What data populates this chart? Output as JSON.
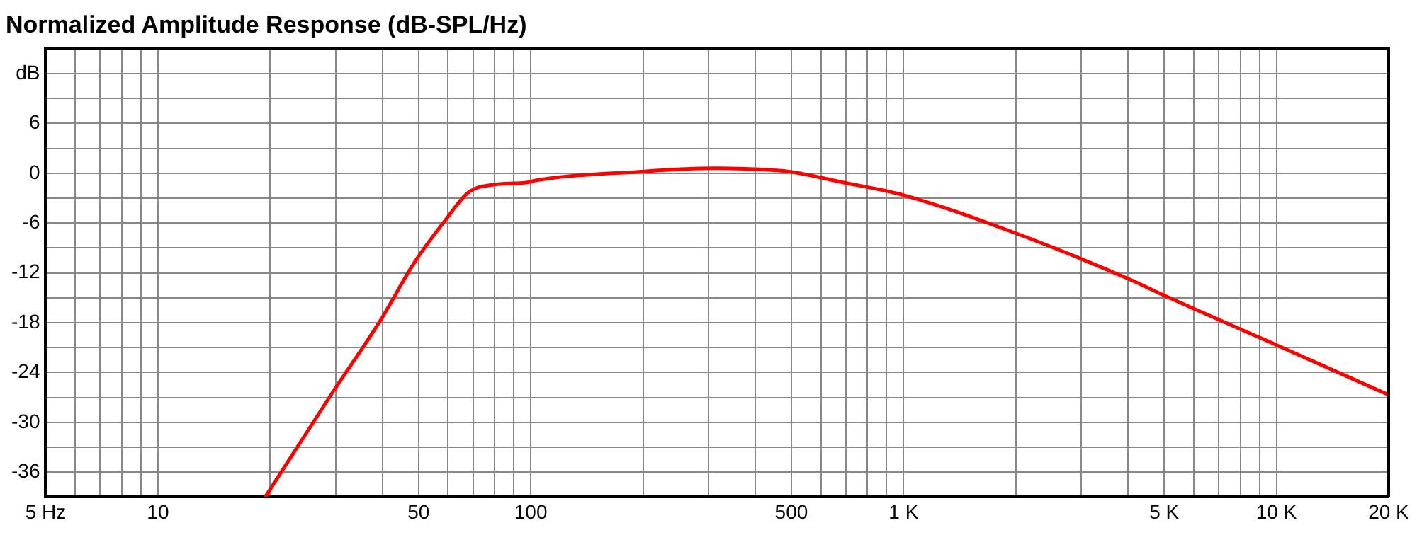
{
  "chart_data": {
    "type": "line",
    "title": "Normalized Amplitude Response (dB-SPL/Hz)",
    "x": [
      19.4,
      29.3,
      39.3,
      49,
      58.9,
      68.1,
      78.9,
      98,
      102,
      198,
      307,
      397,
      494,
      687,
      993,
      1992,
      4000,
      4990,
      10020,
      20000
    ],
    "series": [
      {
        "color": "#ff0000",
        "values": [
          -39,
          -26.5,
          -17.9,
          -10.6,
          -5.7,
          -2.3,
          -1.4,
          -1.1,
          -0.9,
          0.2,
          0.6,
          0.5,
          0.2,
          -1.1,
          -2.6,
          -7.2,
          -12.7,
          -14.7,
          -20.7,
          -26.7
        ]
      }
    ],
    "xlim": [
      5,
      20000
    ],
    "xticks": [
      {
        "value": 5,
        "label": "5 Hz"
      },
      {
        "value": 6,
        "label": null
      },
      {
        "value": 7,
        "label": null
      },
      {
        "value": 8,
        "label": null
      },
      {
        "value": 9,
        "label": null
      },
      10,
      {
        "value": 20,
        "label": null
      },
      {
        "value": 30,
        "label": null
      },
      {
        "value": 40,
        "label": null
      },
      50,
      {
        "value": 60,
        "label": null
      },
      {
        "value": 70,
        "label": null
      },
      {
        "value": 80,
        "label": null
      },
      {
        "value": 90,
        "label": null
      },
      100,
      {
        "value": 200,
        "label": null
      },
      {
        "value": 300,
        "label": null
      },
      {
        "value": 400,
        "label": null
      },
      500,
      {
        "value": 600,
        "label": null
      },
      {
        "value": 700,
        "label": null
      },
      {
        "value": 800,
        "label": null
      },
      {
        "value": 900,
        "label": null
      },
      {
        "value": 1000,
        "label": "1 K"
      },
      {
        "value": 2000,
        "label": null
      },
      {
        "value": 3000,
        "label": null
      },
      {
        "value": 4000,
        "label": null
      },
      {
        "value": 5000,
        "label": "5 K"
      },
      {
        "value": 6000,
        "label": null
      },
      {
        "value": 7000,
        "label": null
      },
      {
        "value": 8000,
        "label": null
      },
      {
        "value": 9000,
        "label": null
      },
      {
        "value": 10000,
        "label": "10 K"
      },
      {
        "value": 20000,
        "label": "20 K"
      }
    ],
    "ylim": [
      -39,
      15
    ],
    "yticks": [
      {
        "value": -39,
        "label": null
      },
      -36,
      {
        "value": -33,
        "label": null
      },
      -30,
      {
        "value": -27,
        "label": null
      },
      -24,
      {
        "value": -21,
        "label": null
      },
      -18,
      {
        "value": -15,
        "label": null
      },
      -12,
      {
        "value": -9,
        "label": null
      },
      -6,
      {
        "value": -3,
        "label": null
      },
      0,
      {
        "value": 3,
        "label": null
      },
      6,
      {
        "value": 9,
        "label": null
      },
      {
        "value": 12,
        "label": "dB"
      },
      {
        "value": 15,
        "label": null
      }
    ],
    "log": "x",
    "grid": true,
    "legend": false,
    "marker": "none",
    "line_style": "solid"
  }
}
